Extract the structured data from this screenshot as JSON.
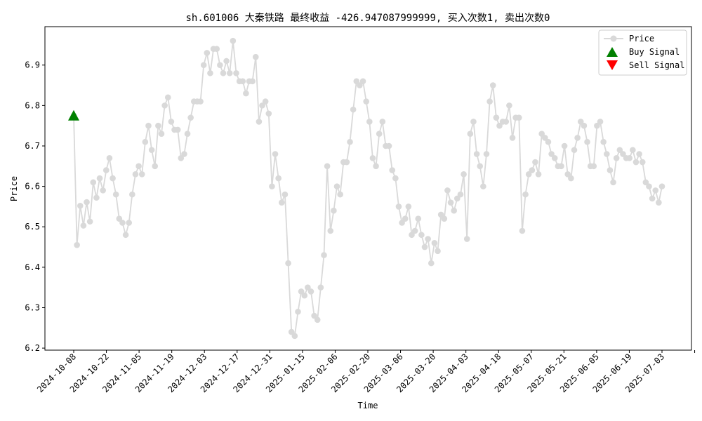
{
  "chart_data": {
    "type": "line",
    "title": "sh.601006 大秦铁路 最终收益 -426.947087999999, 买入次数1, 卖出次数0",
    "xlabel": "Time",
    "ylabel": "Price",
    "ylim": [
      6.195,
      6.995
    ],
    "yticks": [
      6.2,
      6.3,
      6.4,
      6.5,
      6.6,
      6.7,
      6.8,
      6.9
    ],
    "ytick_labels": [
      "6.2",
      "6.3",
      "6.4",
      "6.5",
      "6.6",
      "6.7",
      "6.8",
      "6.9"
    ],
    "xticks": [
      "2024-10-08",
      "2024-10-22",
      "2024-11-05",
      "2024-11-19",
      "2024-12-03",
      "2024-12-17",
      "2024-12-31",
      "2025-01-15",
      "2025-02-06",
      "2025-02-20",
      "2025-03-06",
      "2025-03-20",
      "2025-04-03",
      "2025-04-18",
      "2025-05-07",
      "2025-05-21",
      "2025-06-05",
      "2025-06-19",
      "2025-07-03"
    ],
    "legend": {
      "position": "top-right",
      "entries": [
        {
          "label": "Price",
          "color": "#d9d9d9",
          "marker": "circle-line"
        },
        {
          "label": "Buy Signal",
          "color": "#008000",
          "marker": "triangle-up"
        },
        {
          "label": "Sell Signal",
          "color": "#ff0000",
          "marker": "triangle-down"
        }
      ]
    },
    "series": [
      {
        "name": "Price",
        "color": "#d9d9d9",
        "values": [
          6.775,
          6.455,
          6.552,
          6.503,
          6.561,
          6.513,
          6.61,
          6.572,
          6.62,
          6.59,
          6.64,
          6.67,
          6.62,
          6.58,
          6.52,
          6.51,
          6.48,
          6.51,
          6.58,
          6.63,
          6.65,
          6.63,
          6.71,
          6.75,
          6.69,
          6.65,
          6.75,
          6.73,
          6.8,
          6.82,
          6.76,
          6.74,
          6.74,
          6.67,
          6.68,
          6.73,
          6.77,
          6.81,
          6.81,
          6.81,
          6.9,
          6.93,
          6.88,
          6.94,
          6.94,
          6.9,
          6.88,
          6.91,
          6.88,
          6.96,
          6.88,
          6.86,
          6.86,
          6.83,
          6.86,
          6.86,
          6.92,
          6.76,
          6.8,
          6.81,
          6.78,
          6.6,
          6.68,
          6.62,
          6.56,
          6.58,
          6.41,
          6.24,
          6.23,
          6.29,
          6.34,
          6.33,
          6.35,
          6.34,
          6.28,
          6.27,
          6.35,
          6.43,
          6.65,
          6.49,
          6.54,
          6.6,
          6.58,
          6.66,
          6.66,
          6.71,
          6.79,
          6.86,
          6.85,
          6.86,
          6.81,
          6.76,
          6.67,
          6.65,
          6.73,
          6.76,
          6.7,
          6.7,
          6.64,
          6.62,
          6.55,
          6.51,
          6.52,
          6.55,
          6.48,
          6.49,
          6.52,
          6.48,
          6.45,
          6.47,
          6.41,
          6.46,
          6.44,
          6.53,
          6.52,
          6.59,
          6.56,
          6.54,
          6.57,
          6.58,
          6.63,
          6.47,
          6.73,
          6.76,
          6.68,
          6.65,
          6.6,
          6.68,
          6.81,
          6.85,
          6.77,
          6.75,
          6.76,
          6.76,
          6.8,
          6.72,
          6.77,
          6.77,
          6.49,
          6.58,
          6.63,
          6.64,
          6.66,
          6.63,
          6.73,
          6.72,
          6.71,
          6.68,
          6.67,
          6.65,
          6.65,
          6.7,
          6.63,
          6.62,
          6.69,
          6.72,
          6.76,
          6.75,
          6.71,
          6.65,
          6.65,
          6.75,
          6.76,
          6.71,
          6.68,
          6.64,
          6.61,
          6.67,
          6.69,
          6.68,
          6.67,
          6.67,
          6.69,
          6.66,
          6.68,
          6.66,
          6.61,
          6.6,
          6.57,
          6.59,
          6.56,
          6.6
        ]
      }
    ],
    "buy_signals": [
      {
        "index": 0,
        "value": 6.775
      }
    ],
    "sell_signals": []
  }
}
